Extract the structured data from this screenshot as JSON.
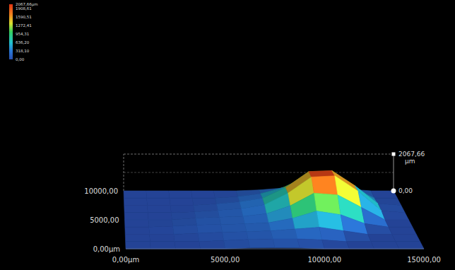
{
  "chart_data": {
    "type": "surface",
    "xlim": [
      0,
      15000
    ],
    "xticks": [
      {
        "value": 0,
        "label": "0,00µm"
      },
      {
        "value": 5000,
        "label": "5000,00"
      },
      {
        "value": 10000,
        "label": "10000,00"
      },
      {
        "value": 15000,
        "label": "15000,00"
      }
    ],
    "ylim": [
      0,
      10000
    ],
    "yticks": [
      {
        "value": 0,
        "label": "0,00µm"
      },
      {
        "value": 5000,
        "label": "5000,00"
      },
      {
        "value": 10000,
        "label": "10000,00"
      }
    ],
    "zlim": [
      0,
      2067.66
    ],
    "zticks": [
      {
        "value": 0,
        "label": "0,00"
      },
      {
        "value": 2067.66,
        "label": "2067,66"
      }
    ],
    "zlabel": "µm",
    "colorbar": {
      "range": [
        0,
        2067.66
      ],
      "ticks": [
        {
          "value": 2067.66,
          "label": "2067,66µm"
        },
        {
          "value": 1908.61,
          "label": "1908,61"
        },
        {
          "value": 1590.51,
          "label": "1590,51"
        },
        {
          "value": 1272.41,
          "label": "1272,41"
        },
        {
          "value": 954.31,
          "label": "954,31"
        },
        {
          "value": 636.2,
          "label": "636,20"
        },
        {
          "value": 318.1,
          "label": "318,10"
        },
        {
          "value": 0,
          "label": "0,00"
        }
      ]
    },
    "x": [
      0,
      1250,
      2500,
      3750,
      5000,
      6250,
      7500,
      8750,
      10000,
      11250,
      12500,
      13750,
      15000
    ],
    "y": [
      0,
      1250,
      2500,
      3750,
      5000,
      6250,
      7500,
      8750,
      10000
    ],
    "z": [
      [
        0,
        0,
        0,
        0,
        0,
        50,
        60,
        50,
        0,
        0,
        0,
        0,
        0
      ],
      [
        0,
        0,
        0,
        0,
        60,
        120,
        150,
        150,
        100,
        0,
        0,
        0,
        0
      ],
      [
        0,
        0,
        0,
        60,
        120,
        150,
        200,
        300,
        400,
        200,
        0,
        0,
        0
      ],
      [
        0,
        0,
        50,
        120,
        150,
        180,
        250,
        500,
        900,
        700,
        200,
        0,
        0
      ],
      [
        0,
        0,
        0,
        100,
        150,
        200,
        350,
        800,
        1500,
        1400,
        700,
        0,
        0
      ],
      [
        0,
        0,
        0,
        40,
        130,
        220,
        450,
        1100,
        2000,
        2067,
        1200,
        100,
        0
      ],
      [
        0,
        0,
        0,
        0,
        80,
        200,
        400,
        1000,
        1900,
        1950,
        1100,
        100,
        0
      ],
      [
        0,
        0,
        0,
        0,
        0,
        80,
        250,
        600,
        1200,
        1200,
        600,
        0,
        0
      ],
      [
        0,
        0,
        0,
        0,
        0,
        0,
        50,
        150,
        300,
        300,
        100,
        0,
        0
      ]
    ]
  }
}
